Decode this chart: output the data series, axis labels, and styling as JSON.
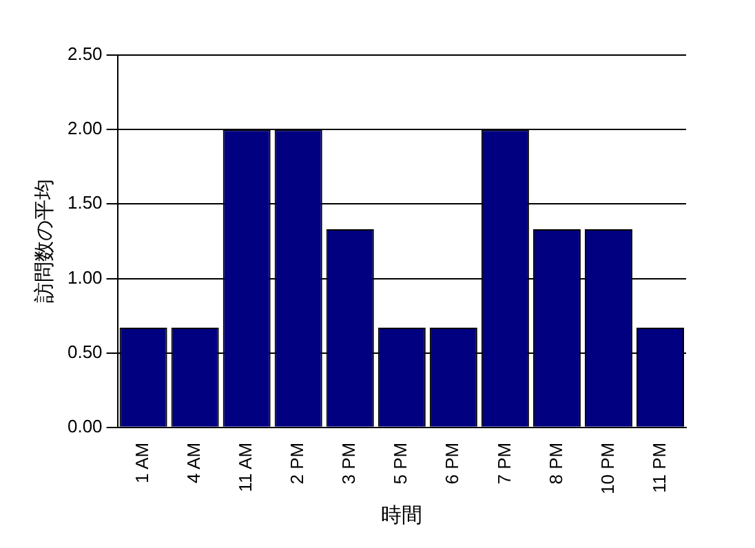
{
  "chart_data": {
    "type": "bar",
    "xlabel": "時間",
    "ylabel": "訪問数の平均",
    "categories": [
      "1 AM",
      "4 AM",
      "11 AM",
      "2 PM",
      "3 PM",
      "5 PM",
      "6 PM",
      "7 PM",
      "8 PM",
      "10 PM",
      "11 PM"
    ],
    "values": [
      0.67,
      0.67,
      2.0,
      2.0,
      1.33,
      0.67,
      0.67,
      2.0,
      1.33,
      1.33,
      0.67
    ],
    "color": "#000080",
    "ylim": [
      0,
      2.5
    ],
    "yticks": [
      {
        "value": 0,
        "label": "0.00"
      },
      {
        "value": 0.5,
        "label": "0.50"
      },
      {
        "value": 1,
        "label": "1.00"
      },
      {
        "value": 1.5,
        "label": "1.50"
      },
      {
        "value": 2,
        "label": "2.00"
      },
      {
        "value": 2.5,
        "label": "2.50"
      }
    ],
    "grid": "y"
  }
}
